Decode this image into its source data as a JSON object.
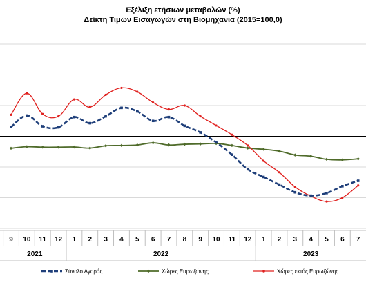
{
  "chart_data": {
    "type": "line",
    "title": "Εξέλιξη ετήσιων μεταβολών (%)",
    "subtitle": "Δείκτη Τιμών Εισαγωγών στη Βιομηχανία (2015=100,0)",
    "categories": [
      "9",
      "10",
      "11",
      "12",
      "1",
      "2",
      "3",
      "4",
      "5",
      "6",
      "7",
      "8",
      "9",
      "10",
      "11",
      "12",
      "1",
      "2",
      "3",
      "4",
      "5",
      "6",
      "7"
    ],
    "years": [
      {
        "label": "2021",
        "from": 0,
        "to": 3
      },
      {
        "label": "2022",
        "from": 4,
        "to": 15
      },
      {
        "label": "2023",
        "from": 16,
        "to": 22
      }
    ],
    "ylim": [
      -40,
      80
    ],
    "grid": true,
    "legend_position": "bottom",
    "series": [
      {
        "name": "Σύνολο Αγοράς",
        "color": "#1f3f7a",
        "style": "dashed",
        "values": [
          26.0,
          33.5,
          26.5,
          25.8,
          32.5,
          28.5,
          33.0,
          38.5,
          36.2,
          30.0,
          32.5,
          26.8,
          22.5,
          16.0,
          8.0,
          -1.5,
          -6.5,
          -11.5,
          -16.5,
          -18.7,
          -17.0,
          -12.5,
          -9.0
        ]
      },
      {
        "name": "Χώρες Ευρωζώνης",
        "color": "#4f6b2a",
        "style": "solid",
        "values": [
          12.2,
          13.2,
          12.9,
          12.9,
          13.0,
          12.3,
          13.8,
          14.0,
          14.3,
          15.7,
          14.3,
          14.8,
          15.0,
          15.3,
          14.0,
          12.3,
          11.5,
          10.3,
          7.8,
          7.0,
          5.0,
          4.6,
          5.3
        ]
      },
      {
        "name": "Χώρες εκτός Ευρωζώνης",
        "color": "#e0201e",
        "style": "solid",
        "values": [
          34.0,
          48.0,
          34.5,
          33.0,
          44.0,
          39.0,
          47.0,
          51.5,
          49.0,
          42.0,
          37.5,
          40.0,
          33.0,
          27.0,
          21.0,
          14.0,
          4.0,
          -3.5,
          -13.0,
          -19.0,
          -22.5,
          -20.0,
          -12.0
        ]
      }
    ]
  }
}
